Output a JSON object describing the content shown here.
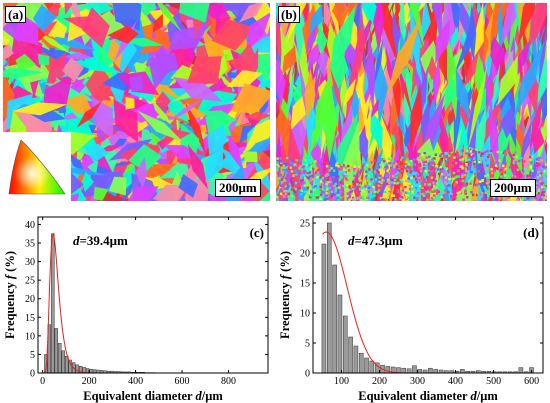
{
  "figure": {
    "panels": {
      "a": {
        "label": "(a)",
        "scale_bar": "200μm"
      },
      "b": {
        "label": "(b)",
        "scale_bar": "200μm"
      }
    },
    "ipf_key": {
      "visible": true
    }
  },
  "chart_data": [
    {
      "id": "c",
      "type": "bar",
      "panel_label": "(c)",
      "annotation_var": "d",
      "annotation_value": "=39.4μm",
      "xlabel_text": "Equivalent diameter ",
      "xlabel_var": "d",
      "xlabel_unit": "/μm",
      "ylabel_text": "Frequency ",
      "ylabel_var": "f",
      "ylabel_unit": " (%)",
      "xlim": [
        -20,
        970
      ],
      "ylim": [
        0,
        42
      ],
      "xticks": [
        0,
        200,
        400,
        600,
        800
      ],
      "yticks": [
        0,
        5,
        10,
        15,
        20,
        25,
        30,
        35,
        40
      ],
      "bin_width": 15,
      "x": [
        15,
        30,
        45,
        60,
        75,
        90,
        105,
        120,
        135,
        150,
        165,
        180,
        195,
        210,
        225,
        240,
        255,
        270,
        285,
        300,
        315,
        330,
        345,
        360,
        375,
        390,
        405,
        420,
        435,
        450,
        465,
        480
      ],
      "values": [
        5,
        13,
        37.5,
        12,
        8,
        6,
        4.5,
        3.5,
        2.8,
        2.2,
        1.8,
        1.5,
        1.2,
        1.0,
        0.9,
        0.8,
        0.7,
        0.6,
        0.5,
        0.5,
        0.4,
        0.4,
        0.3,
        0.3,
        0.3,
        0.2,
        0.2,
        0.2,
        0.2,
        0.1,
        0.1,
        0.1
      ],
      "fit": {
        "type": "lognormal",
        "peak_x": 45,
        "peak_y": 37.5,
        "sigma_log": 0.42
      }
    },
    {
      "id": "d",
      "type": "bar",
      "panel_label": "(d)",
      "annotation_var": "d",
      "annotation_value": "=47.3μm",
      "xlabel_text": "Equivalent diameter ",
      "xlabel_var": "d",
      "xlabel_unit": "/μm",
      "ylabel_text": "Frequency ",
      "ylabel_var": "f",
      "ylabel_unit": " (%)",
      "xlim": [
        25,
        630
      ],
      "ylim": [
        0,
        26
      ],
      "xticks": [
        100,
        200,
        300,
        400,
        500,
        600
      ],
      "yticks": [
        0,
        5,
        10,
        15,
        20,
        25
      ],
      "bin_width": 13,
      "x": [
        55,
        69,
        83,
        97,
        111,
        125,
        139,
        153,
        167,
        181,
        195,
        209,
        223,
        237,
        251,
        265,
        279,
        293,
        307,
        321,
        335,
        349,
        363,
        377,
        391,
        405,
        419,
        433,
        447,
        461,
        475,
        489,
        503,
        517,
        531,
        545,
        559,
        573,
        587,
        601
      ],
      "values": [
        21.5,
        25,
        18,
        13,
        9.5,
        6,
        4.5,
        3.3,
        2.5,
        2,
        1.7,
        1.3,
        1.1,
        1,
        0.9,
        0.8,
        0.7,
        1.2,
        0.6,
        0.5,
        0.8,
        0.6,
        0.5,
        0.4,
        0.4,
        0.3,
        0.6,
        0.3,
        0.3,
        0.4,
        0.3,
        0.3,
        0.2,
        0.2,
        0.2,
        0.2,
        0.2,
        0.9,
        0.2,
        0.9
      ],
      "fit": {
        "type": "gaussian",
        "mean": 60,
        "sd": 55,
        "peak_y": 23.5
      }
    }
  ]
}
